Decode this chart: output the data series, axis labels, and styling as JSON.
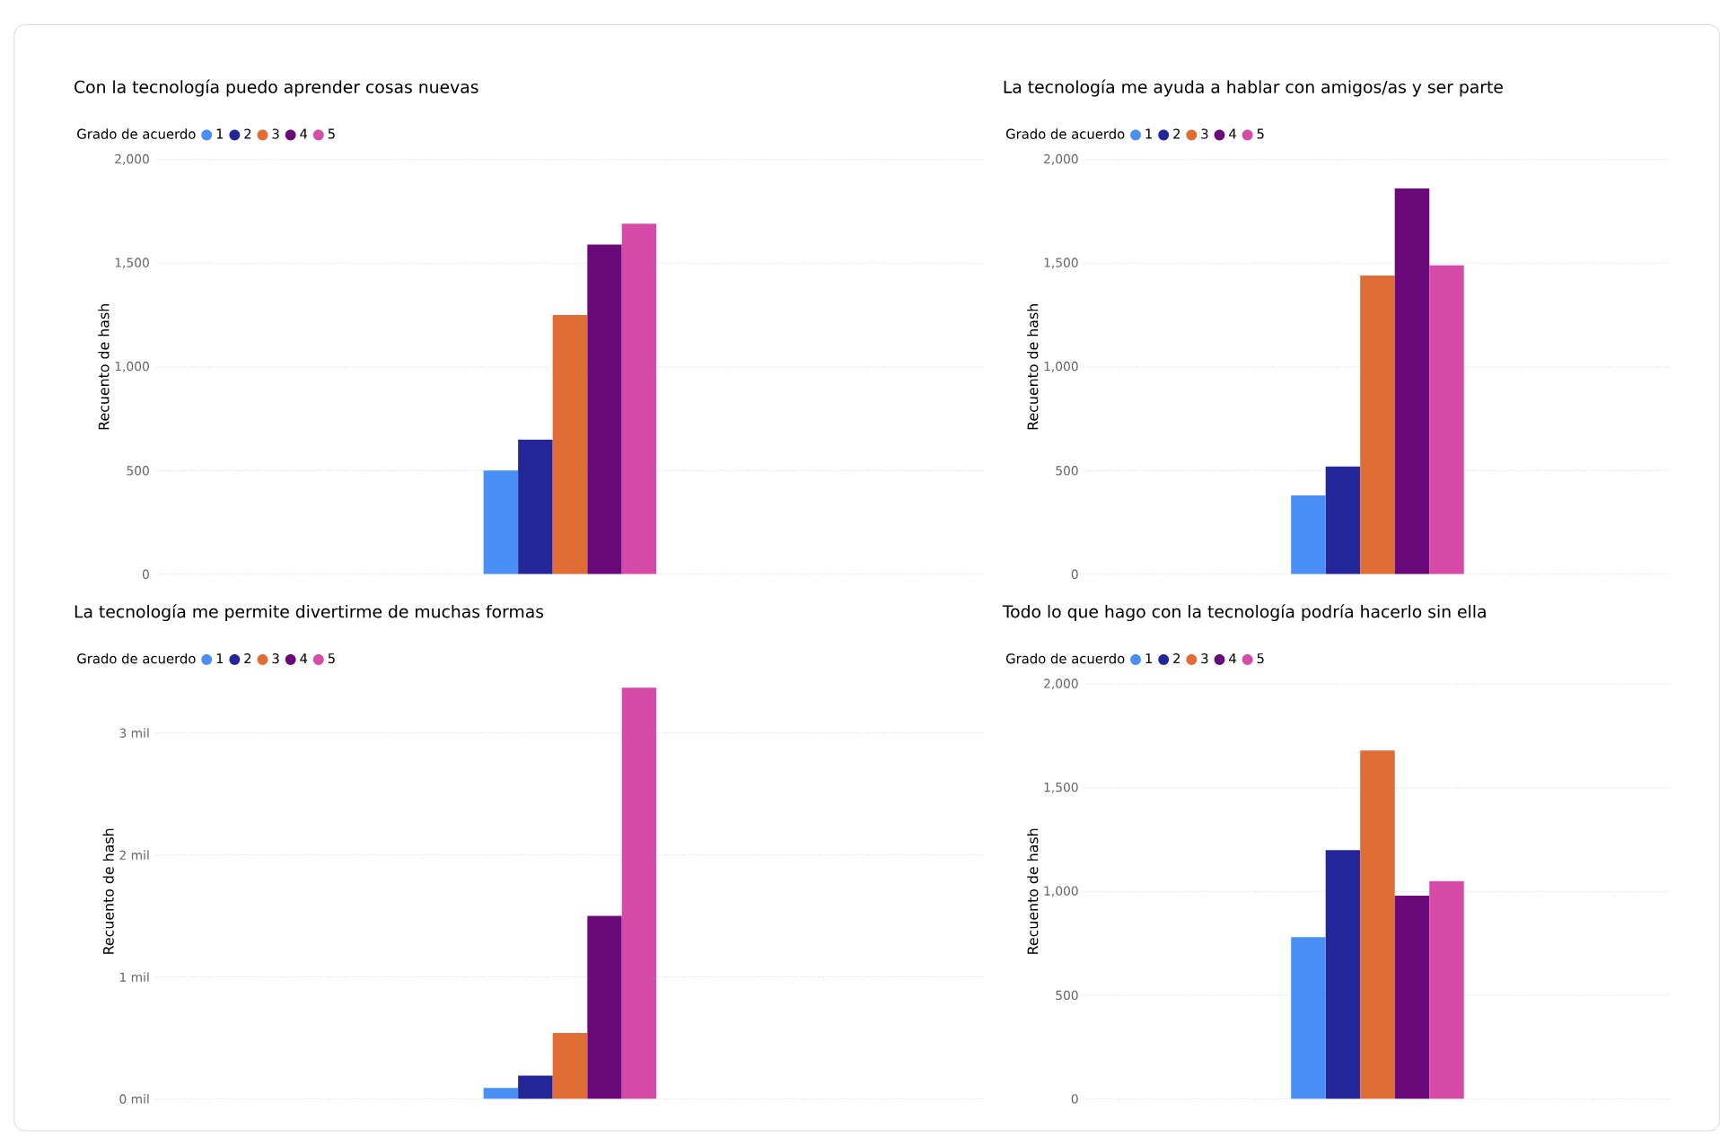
{
  "chart_data": [
    {
      "type": "bar",
      "title": "Con la tecnología puedo aprender cosas nuevas",
      "ylabel": "Recuento de hash",
      "legend_title": "Grado de acuerdo",
      "legend": "top left",
      "grid": "y",
      "categories": [
        null
      ],
      "ylim": [
        0,
        2000
      ],
      "yticks": [
        0,
        500,
        {
          "value": 1000,
          "label": "1,000"
        },
        {
          "value": 1500,
          "label": "1,500"
        },
        {
          "value": 2000,
          "label": "2,000"
        }
      ],
      "series": [
        {
          "name": "1",
          "color": "#4a8ff5",
          "values": [
            500
          ]
        },
        {
          "name": "2",
          "color": "#23279a",
          "values": [
            650
          ]
        },
        {
          "name": "3",
          "color": "#e06c36",
          "values": [
            1250
          ]
        },
        {
          "name": "4",
          "color": "#6a0a7a",
          "values": [
            1590
          ]
        },
        {
          "name": "5",
          "color": "#d64aa8",
          "values": [
            1690
          ]
        }
      ]
    },
    {
      "type": "bar",
      "title": "La tecnología me ayuda a hablar con amigos/as y ser parte",
      "ylabel": "Recuento de hash",
      "legend_title": "Grado de acuerdo",
      "legend": "top left",
      "grid": "y",
      "categories": [
        null
      ],
      "ylim": [
        0,
        2000
      ],
      "yticks": [
        0,
        500,
        {
          "value": 1000,
          "label": "1,000"
        },
        {
          "value": 1500,
          "label": "1,500"
        },
        {
          "value": 2000,
          "label": "2,000"
        }
      ],
      "series": [
        {
          "name": "1",
          "color": "#4a8ff5",
          "values": [
            380
          ]
        },
        {
          "name": "2",
          "color": "#23279a",
          "values": [
            520
          ]
        },
        {
          "name": "3",
          "color": "#e06c36",
          "values": [
            1440
          ]
        },
        {
          "name": "4",
          "color": "#6a0a7a",
          "values": [
            1860
          ]
        },
        {
          "name": "5",
          "color": "#d64aa8",
          "values": [
            1490
          ]
        }
      ]
    },
    {
      "type": "bar",
      "title": "La tecnología me permite divertirme de muchas formas",
      "ylabel": "Recuento de hash",
      "legend_title": "Grado de acuerdo",
      "legend": "top left",
      "grid": "y",
      "categories": [
        null
      ],
      "ylim": [
        0,
        3.4
      ],
      "yticks": [
        {
          "value": 0,
          "label": "0 mil"
        },
        {
          "value": 1,
          "label": "1 mil"
        },
        {
          "value": 2,
          "label": "2 mil"
        },
        {
          "value": 3,
          "label": "3 mil"
        }
      ],
      "series": [
        {
          "name": "1",
          "color": "#4a8ff5",
          "values": [
            0.09
          ]
        },
        {
          "name": "2",
          "color": "#23279a",
          "values": [
            0.19
          ]
        },
        {
          "name": "3",
          "color": "#e06c36",
          "values": [
            0.54
          ]
        },
        {
          "name": "4",
          "color": "#6a0a7a",
          "values": [
            1.5
          ]
        },
        {
          "name": "5",
          "color": "#d64aa8",
          "values": [
            3.37
          ]
        }
      ]
    },
    {
      "type": "bar",
      "title": "Todo lo que hago con la tecnología podría hacerlo sin ella",
      "ylabel": "Recuento de hash",
      "legend_title": "Grado de acuerdo",
      "legend": "top left",
      "grid": "y",
      "categories": [
        null
      ],
      "ylim": [
        0,
        2000
      ],
      "yticks": [
        0,
        500,
        {
          "value": 1000,
          "label": "1,000"
        },
        {
          "value": 1500,
          "label": "1,500"
        },
        {
          "value": 2000,
          "label": "2,000"
        }
      ],
      "series": [
        {
          "name": "1",
          "color": "#4a8ff5",
          "values": [
            780
          ]
        },
        {
          "name": "2",
          "color": "#23279a",
          "values": [
            1200
          ]
        },
        {
          "name": "3",
          "color": "#e06c36",
          "values": [
            1680
          ]
        },
        {
          "name": "4",
          "color": "#6a0a7a",
          "values": [
            980
          ]
        },
        {
          "name": "5",
          "color": "#d64aa8",
          "values": [
            1050
          ]
        }
      ]
    }
  ]
}
